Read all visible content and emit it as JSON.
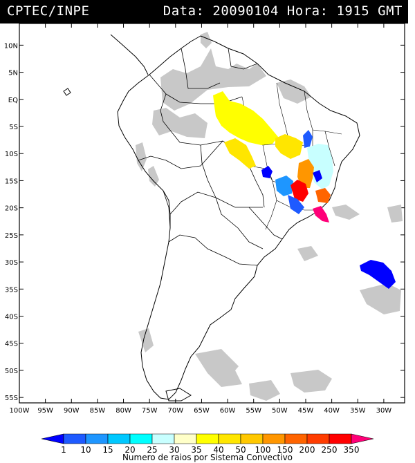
{
  "header": {
    "source": "CPTEC/INPE",
    "datetime": "Data: 20090104 Hora: 1915 GMT"
  },
  "axes": {
    "lat_labels": [
      "10N",
      "5N",
      "EQ",
      "5S",
      "10S",
      "15S",
      "20S",
      "25S",
      "30S",
      "35S",
      "40S",
      "45S",
      "50S",
      "55S"
    ],
    "lat_values": [
      10,
      5,
      0,
      -5,
      -10,
      -15,
      -20,
      -25,
      -30,
      -35,
      -40,
      -45,
      -50,
      -55
    ],
    "lon_labels": [
      "100W",
      "95W",
      "90W",
      "85W",
      "80W",
      "75W",
      "70W",
      "65W",
      "60W",
      "55W",
      "50W",
      "45W",
      "40W",
      "35W",
      "30W"
    ],
    "lon_values": [
      -100,
      -95,
      -90,
      -85,
      -80,
      -75,
      -70,
      -65,
      -60,
      -55,
      -50,
      -45,
      -40,
      -35,
      -30
    ],
    "lon_range": [
      -100,
      -26
    ],
    "lat_range": [
      -56,
      14
    ]
  },
  "colorbar": {
    "title": "Numero de raios por Sistema Convectivo",
    "labels": [
      "1",
      "10",
      "15",
      "20",
      "25",
      "30",
      "35",
      "40",
      "50",
      "100",
      "150",
      "200",
      "250",
      "350"
    ],
    "colors": [
      "#0000ff",
      "#1e5aff",
      "#1e96ff",
      "#00c8ff",
      "#00ffff",
      "#c8ffff",
      "#ffffc8",
      "#ffff00",
      "#ffe600",
      "#ffc800",
      "#ff9600",
      "#ff6400",
      "#ff3c00",
      "#ff0000",
      "#ff0078"
    ]
  },
  "colors": {
    "cloud": "#c8c8c8",
    "cloud_dark": "#b0b0b0"
  },
  "systems": [
    {
      "name": "amazon-yellow",
      "lon": -62,
      "lat": -4,
      "color": "#ffff00"
    },
    {
      "name": "central-yellow",
      "lon": -55,
      "lat": -8,
      "color": "#ffe600"
    },
    {
      "name": "east-yellow",
      "lon": -45,
      "lat": -10,
      "color": "#ffe600"
    },
    {
      "name": "bahia-lightcyan",
      "lon": -42,
      "lat": -13,
      "color": "#c8ffff"
    },
    {
      "name": "nordeste-blue",
      "lon": -43,
      "lat": -8,
      "color": "#1e5aff"
    },
    {
      "name": "goias-blue",
      "lon": -52,
      "lat": -15,
      "color": "#0000ff"
    },
    {
      "name": "minas-orange",
      "lon": -44,
      "lat": -16,
      "color": "#ff6400"
    },
    {
      "name": "sp-red",
      "lon": -46,
      "lat": -19,
      "color": "#ff0000"
    },
    {
      "name": "sp-blue",
      "lon": -48,
      "lat": -18,
      "color": "#1e96ff"
    },
    {
      "name": "rj-orange",
      "lon": -42,
      "lat": -19,
      "color": "#ff9600"
    },
    {
      "name": "rj-magenta",
      "lon": -41,
      "lat": -22,
      "color": "#ff0078"
    },
    {
      "name": "atlantic-blue",
      "lon": -32,
      "lat": -32,
      "color": "#0000ff"
    }
  ]
}
